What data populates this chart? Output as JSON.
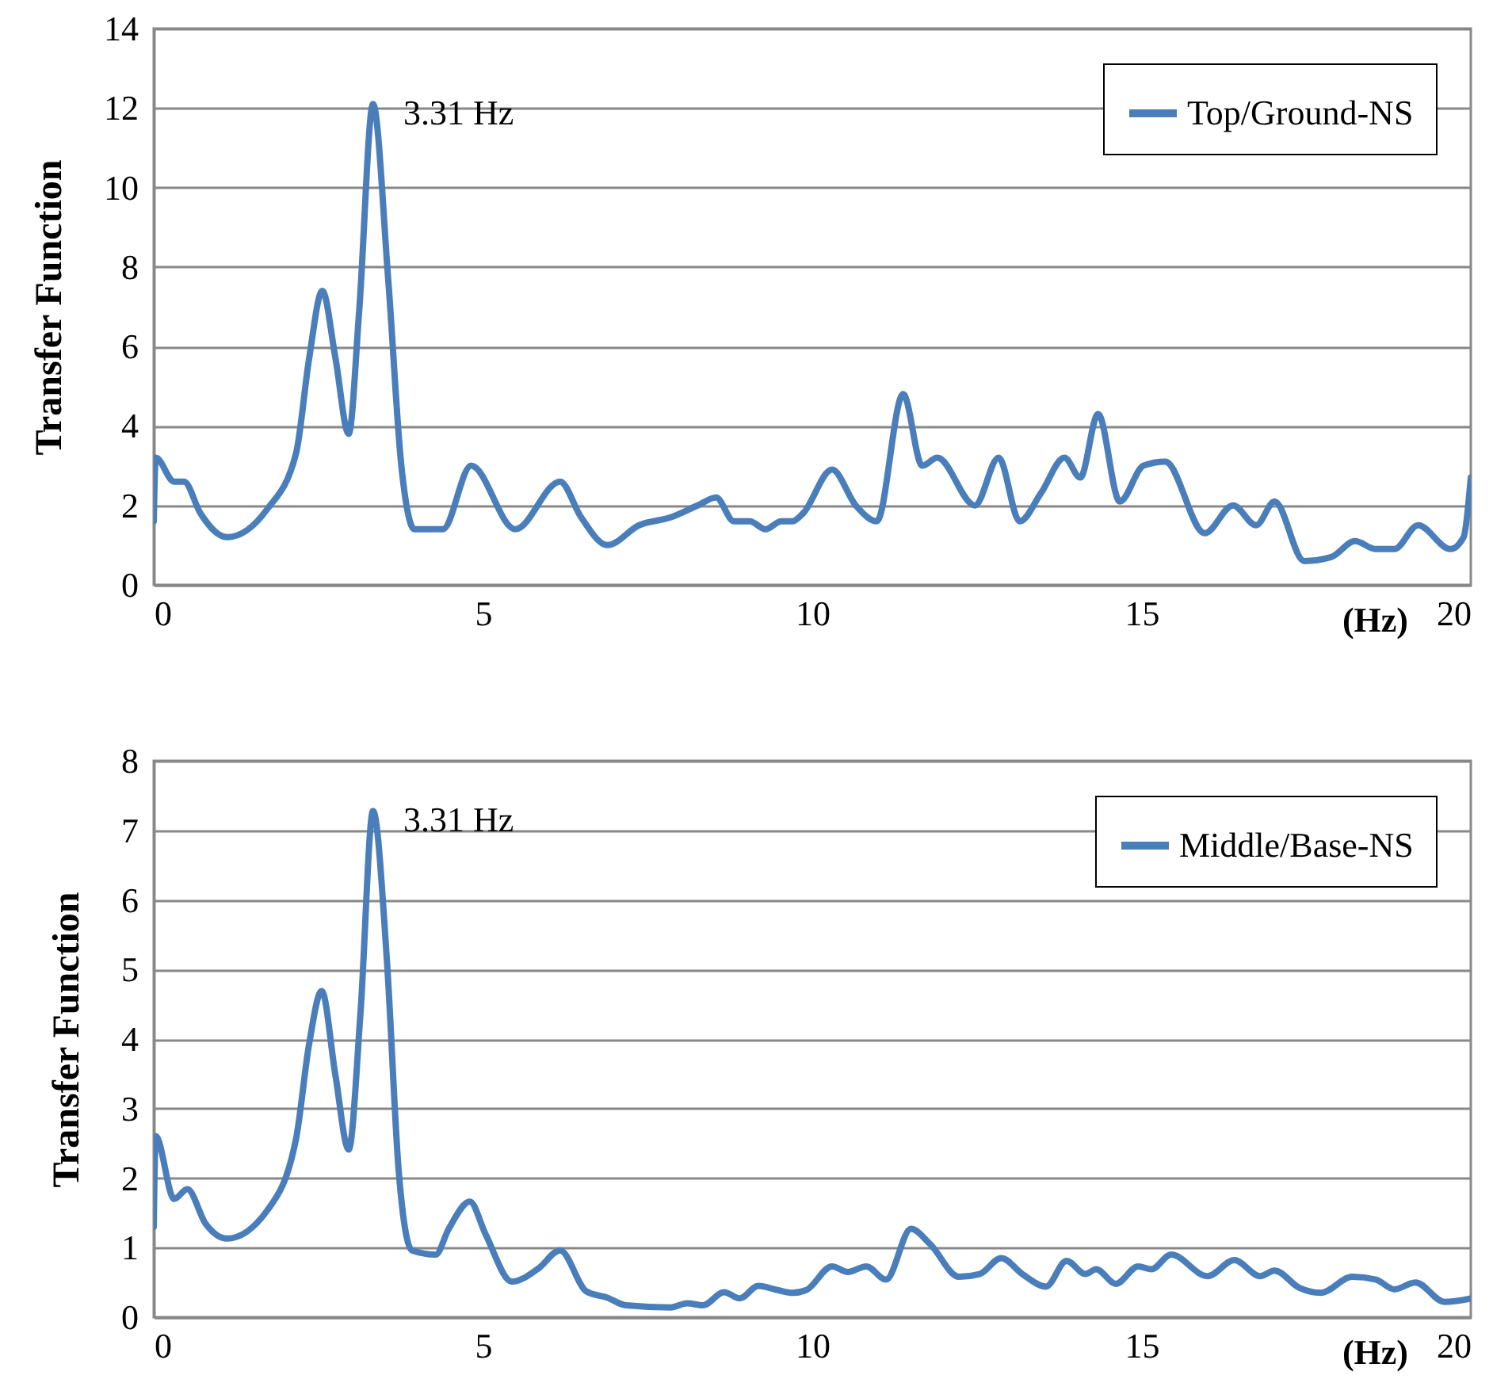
{
  "chart_data": [
    {
      "type": "line",
      "ylabel": "Transfer Function",
      "xlabel": "(Hz)",
      "xlim": [
        0,
        20
      ],
      "xticks": [
        0,
        5,
        10,
        15,
        20
      ],
      "ylim": [
        0,
        14
      ],
      "yticks": [
        0,
        2,
        4,
        6,
        8,
        10,
        12,
        14
      ],
      "grid": "y",
      "legend": "top right",
      "annotations": [
        {
          "text": "3.31 Hz",
          "x": 3.31,
          "y": 12.1
        }
      ],
      "series": [
        {
          "name": "Top/Ground-NS",
          "color": "#4a7ebb",
          "x": [
            0,
            0.03,
            0.31,
            0.46,
            0.71,
            1.11,
            1.72,
            2.16,
            2.36,
            2.56,
            2.76,
            2.96,
            3.12,
            3.33,
            3.56,
            3.76,
            3.96,
            4.16,
            4.39,
            4.82,
            5.49,
            6.17,
            6.49,
            6.89,
            7.37,
            7.85,
            8.26,
            8.54,
            8.81,
            9.05,
            9.29,
            9.53,
            9.7,
            9.86,
            10.3,
            10.66,
            10.98,
            11.38,
            11.67,
            11.9,
            12.47,
            12.83,
            13.15,
            13.47,
            13.83,
            14.07,
            14.34,
            14.67,
            15.03,
            15.36,
            15.96,
            16.39,
            16.74,
            17.02,
            17.47,
            17.88,
            18.24,
            18.56,
            18.84,
            19.2,
            19.69,
            19.89,
            20
          ],
          "values": [
            1.6,
            3.2,
            2.6,
            2.6,
            1.8,
            1.2,
            1.9,
            3.3,
            5.7,
            7.4,
            5.7,
            3.8,
            6.9,
            12.1,
            7.7,
            3.0,
            1.4,
            1.4,
            1.4,
            3.0,
            1.4,
            2.6,
            1.7,
            1.0,
            1.5,
            1.7,
            2.0,
            2.2,
            1.6,
            1.6,
            1.4,
            1.6,
            1.6,
            1.8,
            2.9,
            2.0,
            1.6,
            4.8,
            3.0,
            3.2,
            2.0,
            3.2,
            1.6,
            2.3,
            3.2,
            2.7,
            4.3,
            2.1,
            3.0,
            3.1,
            1.3,
            2.0,
            1.5,
            2.1,
            0.6,
            0.7,
            1.1,
            0.9,
            0.9,
            1.5,
            0.9,
            1.2,
            2.7
          ]
        }
      ]
    },
    {
      "type": "line",
      "ylabel": "Transfer Function",
      "xlabel": "(Hz)",
      "xlim": [
        0,
        20
      ],
      "xticks": [
        0,
        5,
        10,
        15,
        20
      ],
      "ylim": [
        0,
        8
      ],
      "yticks": [
        0,
        1,
        2,
        3,
        4,
        5,
        6,
        7,
        8
      ],
      "grid": "y",
      "legend": "top right",
      "annotations": [
        {
          "text": "3.31 Hz",
          "x": 3.31,
          "y": 7.28
        }
      ],
      "series": [
        {
          "name": "Middle/Base-NS",
          "color": "#4a7ebb",
          "x": [
            0,
            0.03,
            0.31,
            0.51,
            0.79,
            1.11,
            1.72,
            2.16,
            2.36,
            2.55,
            2.76,
            2.96,
            3.14,
            3.33,
            3.54,
            3.72,
            3.92,
            4.28,
            4.48,
            4.8,
            5.04,
            5.44,
            5.84,
            6.17,
            6.57,
            6.89,
            7.17,
            7.85,
            8.1,
            8.34,
            8.66,
            8.9,
            9.18,
            9.47,
            9.7,
            9.91,
            10.3,
            10.54,
            10.82,
            11.12,
            11.5,
            11.79,
            12.23,
            12.54,
            12.87,
            13.19,
            13.55,
            13.86,
            14.15,
            14.31,
            14.61,
            14.95,
            15.15,
            15.45,
            16.0,
            16.41,
            16.8,
            17.02,
            17.4,
            17.72,
            18.2,
            18.56,
            18.84,
            19.16,
            19.6,
            20
          ],
          "values": [
            1.3,
            2.6,
            1.7,
            1.84,
            1.34,
            1.13,
            1.53,
            2.56,
            3.93,
            4.69,
            3.47,
            2.41,
            4.38,
            7.28,
            5.14,
            2.1,
            0.96,
            0.9,
            1.27,
            1.66,
            1.19,
            0.51,
            0.7,
            0.96,
            0.37,
            0.28,
            0.17,
            0.14,
            0.2,
            0.17,
            0.36,
            0.27,
            0.45,
            0.39,
            0.35,
            0.39,
            0.73,
            0.65,
            0.73,
            0.54,
            1.27,
            1.05,
            0.58,
            0.62,
            0.85,
            0.62,
            0.44,
            0.81,
            0.62,
            0.69,
            0.48,
            0.73,
            0.69,
            0.9,
            0.59,
            0.82,
            0.59,
            0.67,
            0.42,
            0.35,
            0.58,
            0.54,
            0.4,
            0.5,
            0.22,
            0.27
          ]
        }
      ]
    }
  ]
}
